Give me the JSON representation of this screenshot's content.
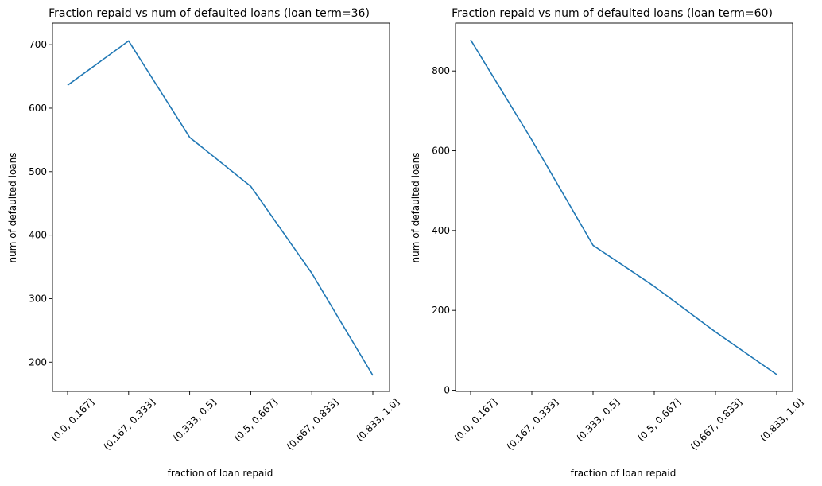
{
  "chart_data": [
    {
      "type": "line",
      "title": "Fraction repaid vs num of defaulted loans (loan term=36)",
      "xlabel": "fraction of loan repaid",
      "ylabel": "num of defaulted loans",
      "categories": [
        "(0.0, 0.167]",
        "(0.167, 0.333]",
        "(0.333, 0.5]",
        "(0.5, 0.667]",
        "(0.667, 0.833]",
        "(0.833, 1.0]"
      ],
      "values": [
        636,
        706,
        554,
        477,
        340,
        179
      ],
      "yticks": [
        200,
        300,
        400,
        500,
        600,
        700
      ],
      "ylim": [
        154,
        734
      ],
      "color": "#1f77b4",
      "grid": false
    },
    {
      "type": "line",
      "title": "Fraction repaid vs num of defaulted loans (loan term=60)",
      "xlabel": "fraction of loan repaid",
      "ylabel": "num of defaulted loans",
      "categories": [
        "(0.0, 0.167]",
        "(0.167, 0.333]",
        "(0.333, 0.5]",
        "(0.5, 0.667]",
        "(0.667, 0.833]",
        "(0.833, 1.0]"
      ],
      "values": [
        878,
        627,
        363,
        260,
        146,
        39
      ],
      "yticks": [
        0,
        200,
        400,
        600,
        800
      ],
      "ylim": [
        -3,
        920
      ],
      "color": "#1f77b4",
      "grid": false
    }
  ]
}
